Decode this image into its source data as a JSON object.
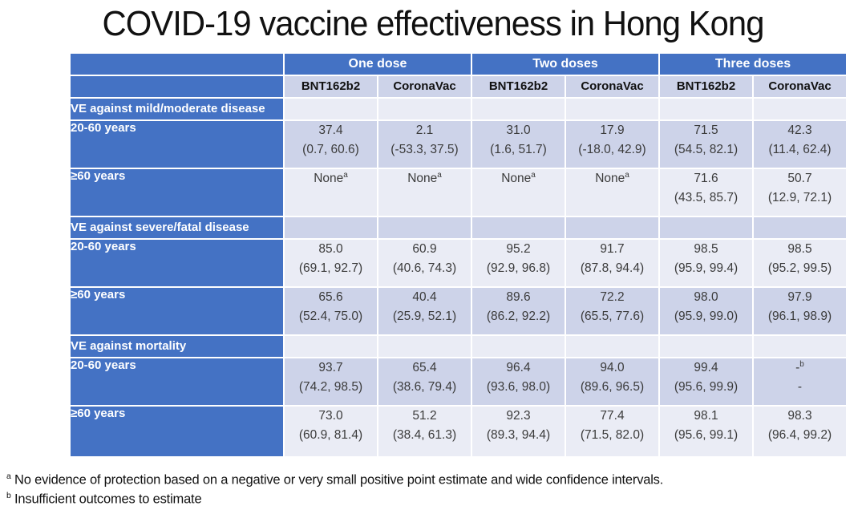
{
  "title": "COVID-19 vaccine effectiveness in Hong Kong",
  "colors": {
    "header_blue": "#4472c4",
    "band_dark": "#cdd3e9",
    "band_light": "#eaecf5",
    "value_text": "#3b3b3b"
  },
  "table": {
    "dose_groups": [
      "One dose",
      "Two doses",
      "Three doses"
    ],
    "brand_headers": [
      "BNT162b2",
      "CoronaVac",
      "BNT162b2",
      "CoronaVac",
      "BNT162b2",
      "CoronaVac"
    ],
    "sections": [
      {
        "label": "VE against mild/moderate disease",
        "rows": [
          {
            "label": "20-60 years",
            "cells": [
              {
                "v": "37.4",
                "ci": "(0.7, 60.6)"
              },
              {
                "v": "2.1",
                "ci": "(-53.3, 37.5)"
              },
              {
                "v": "31.0",
                "ci": "(1.6, 51.7)"
              },
              {
                "v": "17.9",
                "ci": "(-18.0, 42.9)"
              },
              {
                "v": "71.5",
                "ci": "(54.5, 82.1)"
              },
              {
                "v": "42.3",
                "ci": "(11.4, 62.4)"
              }
            ]
          },
          {
            "label": "≥60 years",
            "cells": [
              {
                "v": "None",
                "sup": "a"
              },
              {
                "v": "None",
                "sup": "a"
              },
              {
                "v": "None",
                "sup": "a"
              },
              {
                "v": "None",
                "sup": "a"
              },
              {
                "v": "71.6",
                "ci": "(43.5, 85.7)"
              },
              {
                "v": "50.7",
                "ci": "(12.9, 72.1)"
              }
            ]
          }
        ]
      },
      {
        "label": "VE against severe/fatal disease",
        "rows": [
          {
            "label": "20-60 years",
            "cells": [
              {
                "v": "85.0",
                "ci": "(69.1, 92.7)"
              },
              {
                "v": "60.9",
                "ci": "(40.6, 74.3)"
              },
              {
                "v": "95.2",
                "ci": "(92.9, 96.8)"
              },
              {
                "v": "91.7",
                "ci": "(87.8, 94.4)"
              },
              {
                "v": "98.5",
                "ci": "(95.9, 99.4)"
              },
              {
                "v": "98.5",
                "ci": "(95.2, 99.5)"
              }
            ]
          },
          {
            "label": "≥60 years",
            "cells": [
              {
                "v": "65.6",
                "ci": "(52.4, 75.0)"
              },
              {
                "v": "40.4",
                "ci": "(25.9, 52.1)"
              },
              {
                "v": "89.6",
                "ci": "(86.2, 92.2)"
              },
              {
                "v": "72.2",
                "ci": "(65.5, 77.6)"
              },
              {
                "v": "98.0",
                "ci": "(95.9, 99.0)"
              },
              {
                "v": "97.9",
                "ci": "(96.1, 98.9)"
              }
            ]
          }
        ]
      },
      {
        "label": "VE against mortality",
        "rows": [
          {
            "label": "20-60 years",
            "cells": [
              {
                "v": "93.7",
                "ci": "(74.2, 98.5)"
              },
              {
                "v": "65.4",
                "ci": "(38.6, 79.4)"
              },
              {
                "v": "96.4",
                "ci": "(93.6, 98.0)"
              },
              {
                "v": "94.0",
                "ci": "(89.6, 96.5)"
              },
              {
                "v": "99.4",
                "ci": "(95.6, 99.9)"
              },
              {
                "v": "-",
                "sup": "b",
                "ci": "-"
              }
            ]
          },
          {
            "label": "≥60 years",
            "cells": [
              {
                "v": "73.0",
                "ci": "(60.9, 81.4)"
              },
              {
                "v": "51.2",
                "ci": "(38.4, 61.3)"
              },
              {
                "v": "92.3",
                "ci": "(89.3, 94.4)"
              },
              {
                "v": "77.4",
                "ci": "(71.5, 82.0)"
              },
              {
                "v": "98.1",
                "ci": "(95.6, 99.1)"
              },
              {
                "v": "98.3",
                "ci": "(96.4, 99.2)"
              }
            ]
          }
        ]
      }
    ]
  },
  "footnotes": [
    {
      "sup": "a",
      "text": "No evidence of protection based on a negative or very small positive point estimate and wide confidence intervals."
    },
    {
      "sup": "b",
      "text": "Insufficient outcomes to estimate"
    }
  ]
}
